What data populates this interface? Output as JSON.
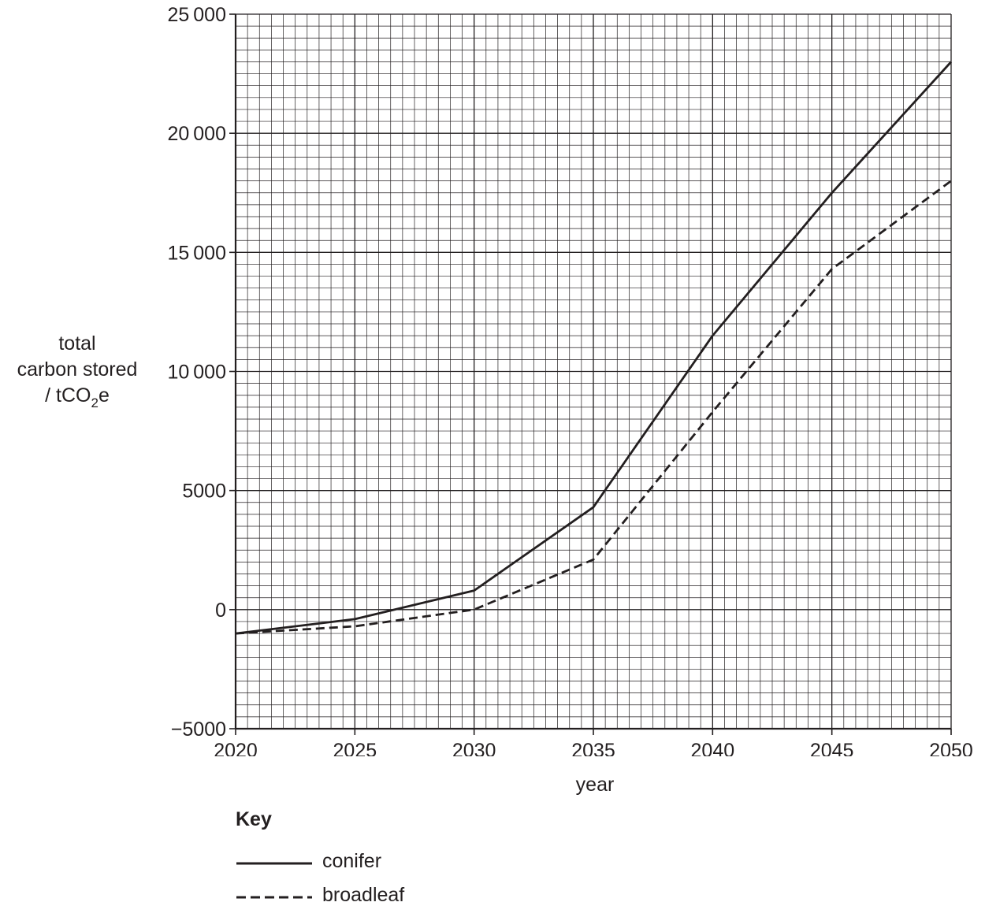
{
  "chart_data": {
    "type": "line",
    "title": "",
    "xlabel": "year",
    "ylabel": {
      "line1": "total",
      "line2": "carbon stored",
      "line3_prefix": "/ tCO",
      "line3_sub": "2",
      "line3_suffix": "e"
    },
    "xlim": [
      2020,
      2050
    ],
    "ylim": [
      -5000,
      25000
    ],
    "x_ticks": [
      2020,
      2025,
      2030,
      2035,
      2040,
      2045,
      2050
    ],
    "x_tick_labels": [
      "2020",
      "2025",
      "2030",
      "2035",
      "2040",
      "2045",
      "2050"
    ],
    "y_ticks": [
      -5000,
      0,
      5000,
      10000,
      15000,
      20000,
      25000
    ],
    "y_tick_labels": [
      "−5000",
      "0",
      "5000",
      "10 000",
      "15 000",
      "20 000",
      "25 000"
    ],
    "grid": true,
    "x": [
      2020,
      2025,
      2030,
      2035,
      2040,
      2045,
      2050
    ],
    "series": [
      {
        "name": "conifer",
        "style": "solid",
        "values": [
          -1000,
          -400,
          800,
          4300,
          11500,
          17500,
          23000
        ]
      },
      {
        "name": "broadleaf",
        "style": "dashed",
        "values": [
          -1000,
          -700,
          0,
          2100,
          8300,
          14300,
          18000
        ]
      }
    ],
    "legend": {
      "title": "Key",
      "placement": "below"
    },
    "colors": {
      "line": "#231f20",
      "grid": "#231f20"
    }
  }
}
